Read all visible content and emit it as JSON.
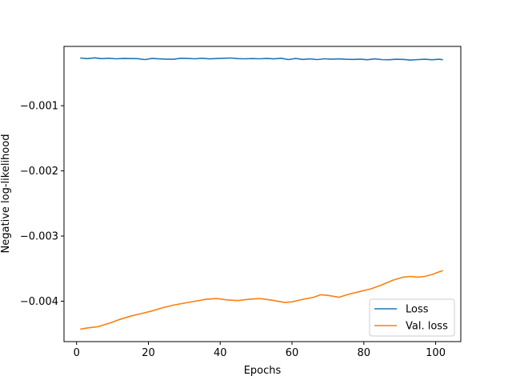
{
  "chart_data": {
    "type": "line",
    "title": "",
    "xlabel": "Epochs",
    "ylabel": "Negative log-likelihood",
    "xlim": [
      -3.5,
      107
    ],
    "ylim": [
      -0.00462,
      -9e-05
    ],
    "x_ticks": [
      0,
      20,
      40,
      60,
      80,
      100
    ],
    "x_tick_labels": [
      "0",
      "20",
      "40",
      "60",
      "80",
      "100"
    ],
    "y_ticks": [
      -0.001,
      -0.002,
      -0.003,
      -0.004
    ],
    "y_tick_labels": [
      "−0.001",
      "−0.002",
      "−0.003",
      "−0.004"
    ],
    "grid": false,
    "legend": "bottom-right",
    "series": [
      {
        "name": "Loss",
        "color": "#1f77b4",
        "x": [
          1,
          3,
          5,
          7,
          9,
          11,
          13,
          15,
          17,
          19,
          21,
          23,
          25,
          27,
          29,
          31,
          33,
          35,
          37,
          39,
          41,
          43,
          45,
          47,
          49,
          51,
          53,
          55,
          57,
          59,
          61,
          63,
          65,
          67,
          69,
          71,
          73,
          75,
          77,
          79,
          81,
          83,
          85,
          87,
          89,
          91,
          93,
          95,
          97,
          99,
          101,
          102
        ],
        "y": [
          -0.000268,
          -0.000278,
          -0.000265,
          -0.000278,
          -0.000272,
          -0.00028,
          -0.000275,
          -0.000277,
          -0.000278,
          -0.000292,
          -0.000275,
          -0.000282,
          -0.000285,
          -0.000288,
          -0.000272,
          -0.000275,
          -0.00028,
          -0.000272,
          -0.000282,
          -0.000277,
          -0.000272,
          -0.000268,
          -0.000278,
          -0.00028,
          -0.000277,
          -0.00028,
          -0.000275,
          -0.000282,
          -0.000272,
          -0.000292,
          -0.000275,
          -0.00029,
          -0.000282,
          -0.000292,
          -0.00028,
          -0.000285,
          -0.000282,
          -0.000288,
          -0.00029,
          -0.000285,
          -0.000295,
          -0.000282,
          -0.000292,
          -0.000295,
          -0.000288,
          -0.00029,
          -0.0003,
          -0.000292,
          -0.000288,
          -0.000295,
          -0.000288,
          -0.000295
        ]
      },
      {
        "name": "Val. loss",
        "color": "#ff7f0e",
        "x": [
          1,
          3,
          6,
          9,
          12,
          15,
          18,
          21,
          24,
          27,
          30,
          33,
          36,
          39,
          42,
          45,
          48,
          51,
          54,
          57,
          58,
          60,
          63,
          66,
          68,
          70,
          73,
          76,
          79,
          82,
          85,
          88,
          91,
          93,
          95,
          97,
          99,
          101,
          102
        ],
        "y": [
          -0.00443,
          -0.00441,
          -0.00439,
          -0.00434,
          -0.00428,
          -0.00423,
          -0.00419,
          -0.00415,
          -0.0041,
          -0.00406,
          -0.00403,
          -0.004,
          -0.00397,
          -0.00396,
          -0.00398,
          -0.00399,
          -0.00397,
          -0.00396,
          -0.00398,
          -0.00401,
          -0.00402,
          -0.00401,
          -0.00397,
          -0.00394,
          -0.0039,
          -0.00391,
          -0.00394,
          -0.00389,
          -0.00385,
          -0.00381,
          -0.00375,
          -0.00368,
          -0.00363,
          -0.00362,
          -0.00363,
          -0.00362,
          -0.00359,
          -0.00355,
          -0.00353
        ]
      }
    ]
  }
}
